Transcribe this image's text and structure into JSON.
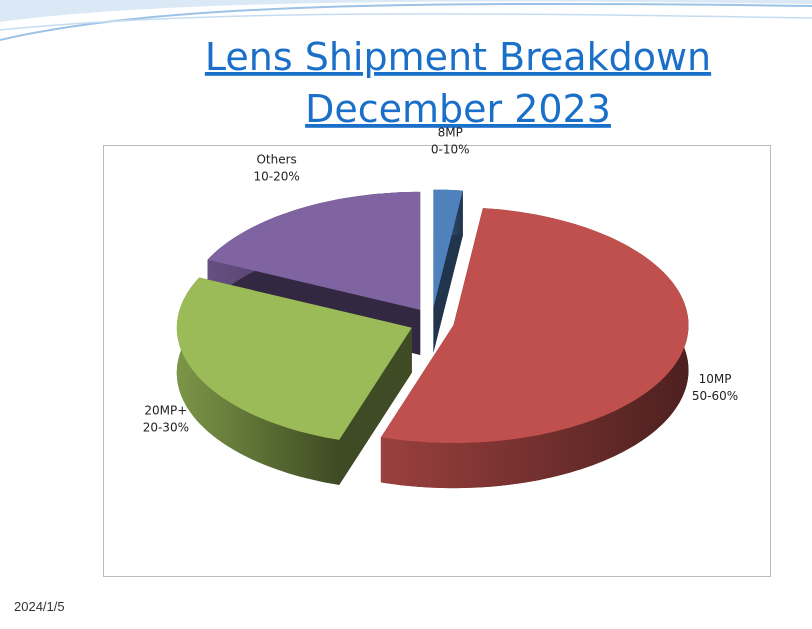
{
  "page": {
    "title_lines": [
      "Lens Shipment Breakdown",
      "December 2023"
    ],
    "date": "2024/1/5"
  },
  "chart_data": {
    "type": "pie",
    "categories": [
      "8MP",
      "10MP",
      "20MP+",
      "Others"
    ],
    "values": [
      2,
      53,
      27,
      18
    ],
    "value_labels": [
      "0-10%",
      "50-60%",
      "20-30%",
      "10-20%"
    ],
    "colors": [
      "#4f81bd",
      "#c0504d",
      "#9bbb59",
      "#8064a2"
    ]
  }
}
